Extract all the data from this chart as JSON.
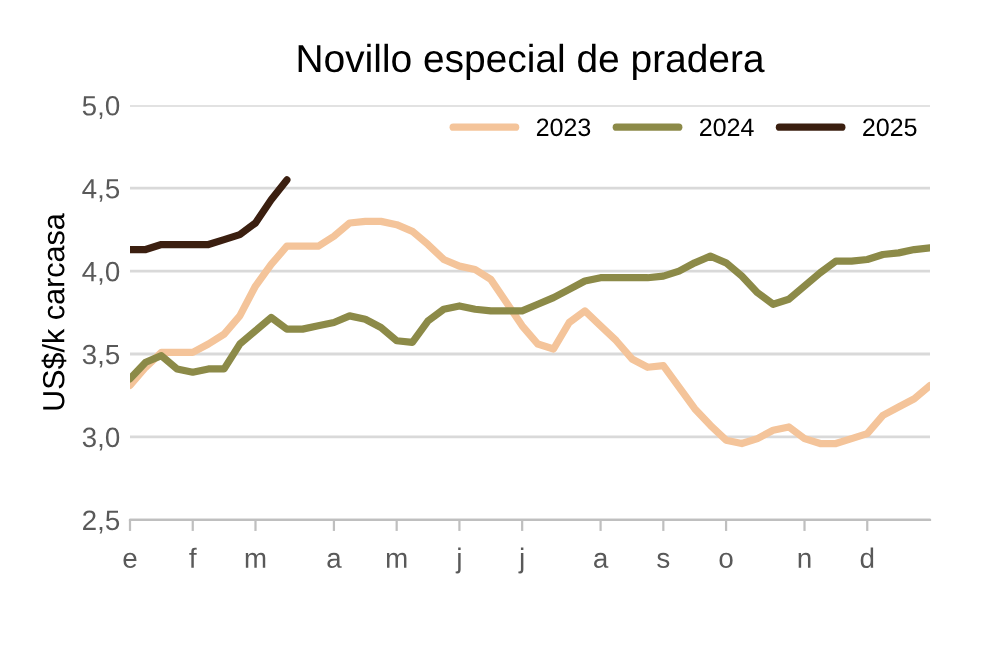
{
  "chart_data": {
    "type": "line",
    "title": "Novillo especial de pradera",
    "ylabel": "US$/k carcasa",
    "categories": [
      "e",
      null,
      null,
      null,
      "f",
      null,
      null,
      null,
      "m",
      null,
      null,
      null,
      null,
      "a",
      null,
      null,
      null,
      "m",
      null,
      null,
      null,
      "j",
      null,
      null,
      null,
      "j",
      null,
      null,
      null,
      null,
      "a",
      null,
      null,
      null,
      "s",
      null,
      null,
      null,
      "o",
      null,
      null,
      null,
      null,
      "n",
      null,
      null,
      null,
      "d",
      null,
      null,
      null,
      null
    ],
    "ylim": [
      2.5,
      5.0
    ],
    "yticks": [
      {
        "value": 2.5,
        "label": "2,5"
      },
      {
        "value": 3.0,
        "label": "3,0"
      },
      {
        "value": 3.5,
        "label": "3,5"
      },
      {
        "value": 4.0,
        "label": "4,0"
      },
      {
        "value": 4.5,
        "label": "4,5"
      },
      {
        "value": 5.0,
        "label": "5,0"
      }
    ],
    "grid": "y",
    "legend": "top right",
    "marker": "none",
    "line_style": "solid",
    "series": [
      {
        "name": "2023",
        "color": "#f4c49a",
        "values": [
          3.31,
          3.42,
          3.51,
          3.51,
          3.51,
          3.56,
          3.62,
          3.73,
          3.91,
          4.04,
          4.15,
          4.15,
          4.15,
          4.21,
          4.29,
          4.3,
          4.3,
          4.28,
          4.24,
          4.16,
          4.07,
          4.03,
          4.01,
          3.95,
          3.81,
          3.67,
          3.56,
          3.53,
          3.69,
          3.76,
          3.67,
          3.58,
          3.47,
          3.42,
          3.43,
          3.3,
          3.17,
          3.07,
          2.98,
          2.96,
          2.99,
          3.04,
          3.06,
          2.99,
          2.96,
          2.96,
          2.99,
          3.02,
          3.13,
          3.18,
          3.23,
          3.31
        ]
      },
      {
        "name": "2024",
        "color": "#8c8a48",
        "values": [
          3.35,
          3.45,
          3.49,
          3.41,
          3.39,
          3.41,
          3.41,
          3.56,
          3.64,
          3.72,
          3.65,
          3.65,
          3.67,
          3.69,
          3.73,
          3.71,
          3.66,
          3.58,
          3.57,
          3.7,
          3.77,
          3.79,
          3.77,
          3.76,
          3.76,
          3.76,
          3.8,
          3.84,
          3.89,
          3.94,
          3.96,
          3.96,
          3.96,
          3.96,
          3.97,
          4.0,
          4.05,
          4.09,
          4.05,
          3.97,
          3.87,
          3.8,
          3.83,
          3.91,
          3.99,
          4.06,
          4.06,
          4.07,
          4.1,
          4.11,
          4.13,
          4.14
        ]
      },
      {
        "name": "2025",
        "color": "#3b1f10",
        "values": [
          4.13,
          4.13,
          4.16,
          4.16,
          4.16,
          4.16,
          4.19,
          4.22,
          4.29,
          4.43,
          4.55,
          null,
          null,
          null,
          null,
          null,
          null,
          null,
          null,
          null,
          null,
          null,
          null,
          null,
          null,
          null,
          null,
          null,
          null,
          null,
          null,
          null,
          null,
          null,
          null,
          null,
          null,
          null,
          null,
          null,
          null,
          null,
          null,
          null,
          null,
          null,
          null,
          null,
          null,
          null,
          null,
          null
        ]
      }
    ]
  }
}
